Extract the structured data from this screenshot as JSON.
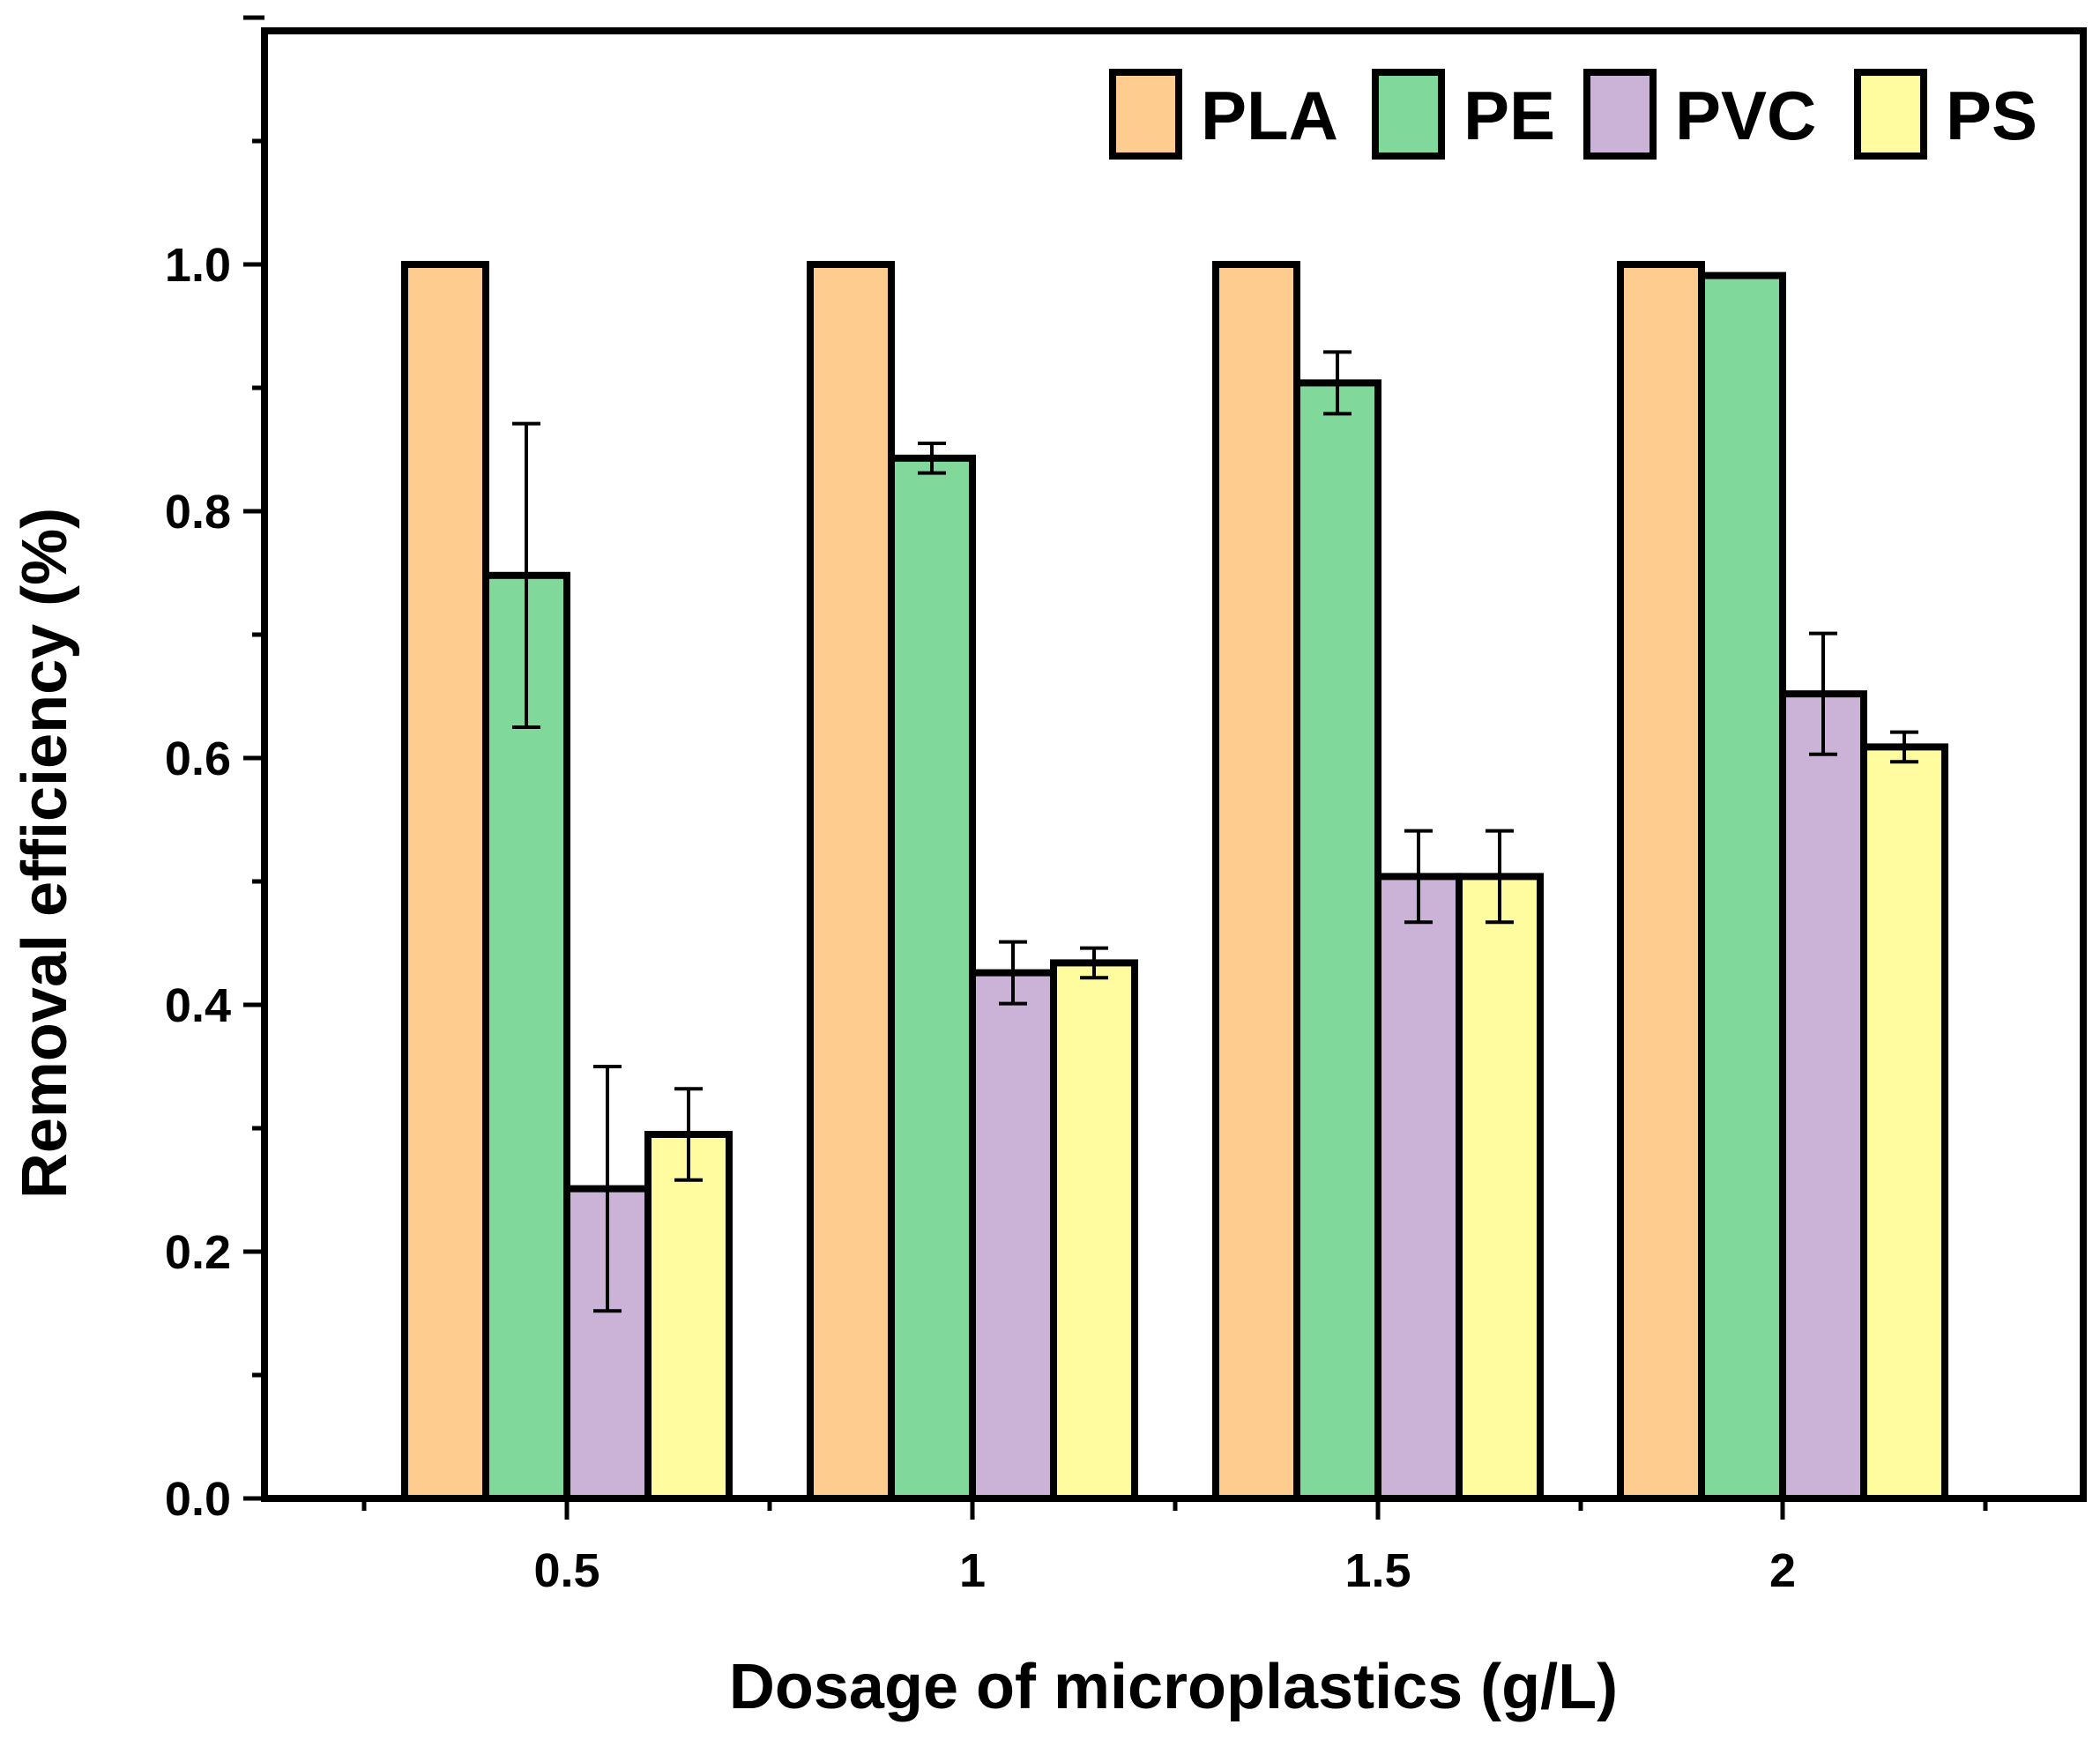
{
  "chart_data": {
    "type": "bar",
    "xlabel": "Dosage of microplastics  (g/L)",
    "ylabel": "Removal efficiency  (%)",
    "categories": [
      "0.5",
      "1",
      "1.5",
      "2"
    ],
    "ylim": [
      0,
      1.2
    ],
    "yticks": [
      "0.0",
      "0.2",
      "0.4",
      "0.6",
      "0.8",
      "1.0"
    ],
    "legend_position": "top-right",
    "grid": false,
    "series": [
      {
        "name": "PLA",
        "color": "#FFCC8F",
        "values": [
          1.0,
          1.0,
          1.0,
          1.0
        ],
        "errors": [
          0,
          0,
          0,
          0
        ]
      },
      {
        "name": "PE",
        "color": "#80D89A",
        "values": [
          0.748,
          0.843,
          0.904,
          0.991
        ],
        "errors": [
          0.123,
          0.012,
          0.025,
          0
        ]
      },
      {
        "name": "PVC",
        "color": "#CBB3D8",
        "values": [
          0.251,
          0.426,
          0.504,
          0.652
        ],
        "errors": [
          0.099,
          0.025,
          0.037,
          0.049
        ]
      },
      {
        "name": "PS",
        "color": "#FFFB9F",
        "values": [
          0.295,
          0.434,
          0.504,
          0.609
        ],
        "errors": [
          0.037,
          0.012,
          0.037,
          0.012
        ]
      }
    ]
  }
}
